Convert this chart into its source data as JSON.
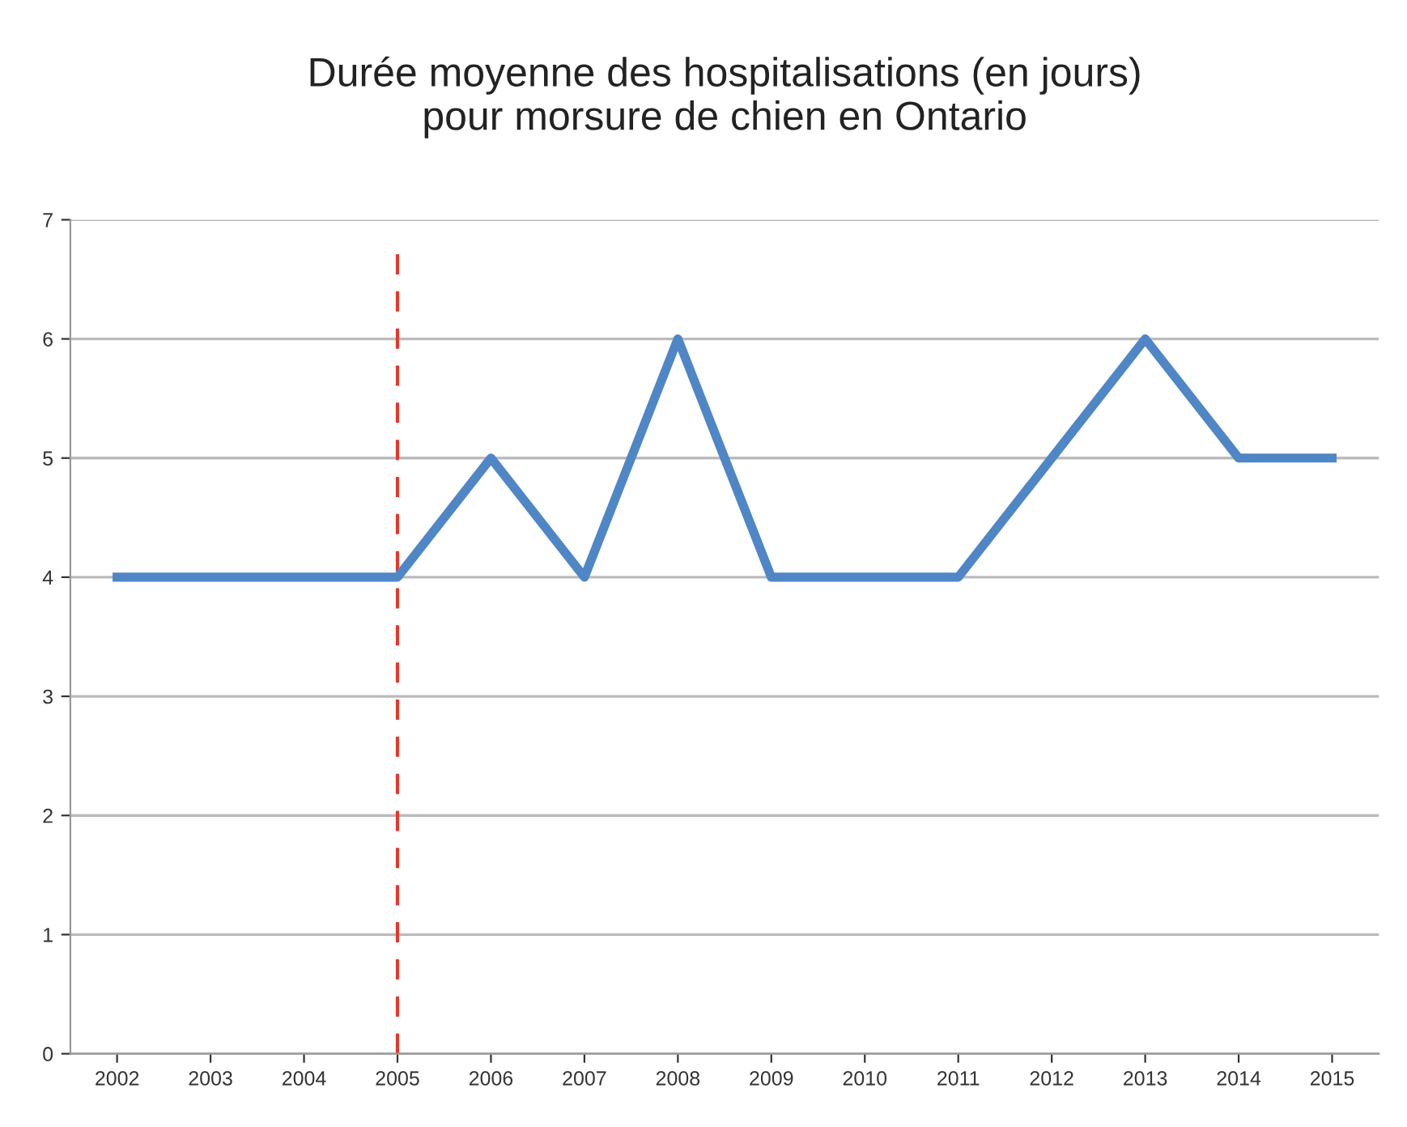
{
  "chart_data": {
    "type": "line",
    "title": "Durée moyenne des hospitalisations (en jours)\npour morsure de chien en Ontario",
    "categories": [
      "2002",
      "2003",
      "2004",
      "2005",
      "2006",
      "2007",
      "2008",
      "2009",
      "2010",
      "2011",
      "2012",
      "2013",
      "2014",
      "2015"
    ],
    "series": [
      {
        "color": "#4f86c6",
        "values": [
          4,
          4,
          4,
          4,
          5,
          4,
          6,
          4,
          4,
          4,
          5,
          6,
          5,
          5
        ]
      }
    ],
    "ylim": [
      0,
      7
    ],
    "yticks": [
      0,
      1,
      2,
      3,
      4,
      5,
      6,
      7
    ],
    "grid": "y",
    "legend": false,
    "marker": "none",
    "line_style": "solid",
    "ref_lines": [
      {
        "axis": "x",
        "value": "2005",
        "color": "#e8362b",
        "line_style": "dashed"
      }
    ]
  }
}
